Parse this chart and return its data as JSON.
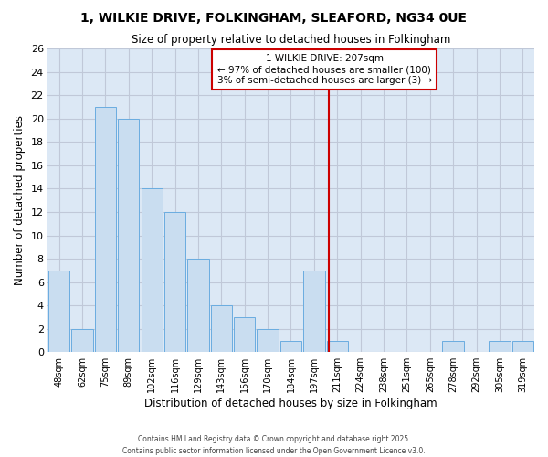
{
  "title": "1, WILKIE DRIVE, FOLKINGHAM, SLEAFORD, NG34 0UE",
  "subtitle": "Size of property relative to detached houses in Folkingham",
  "xlabel": "Distribution of detached houses by size in Folkingham",
  "ylabel": "Number of detached properties",
  "bar_labels": [
    "48sqm",
    "62sqm",
    "75sqm",
    "89sqm",
    "102sqm",
    "116sqm",
    "129sqm",
    "143sqm",
    "156sqm",
    "170sqm",
    "184sqm",
    "197sqm",
    "211sqm",
    "224sqm",
    "238sqm",
    "251sqm",
    "265sqm",
    "278sqm",
    "292sqm",
    "305sqm",
    "319sqm"
  ],
  "bar_values": [
    7,
    2,
    21,
    20,
    14,
    12,
    8,
    4,
    3,
    2,
    1,
    7,
    1,
    0,
    0,
    0,
    0,
    1,
    0,
    1,
    1
  ],
  "bar_color": "#c9ddf0",
  "bar_edge_color": "#6aace0",
  "grid_color": "#c0c8d8",
  "ylim": [
    0,
    26
  ],
  "yticks": [
    0,
    2,
    4,
    6,
    8,
    10,
    12,
    14,
    16,
    18,
    20,
    22,
    24,
    26
  ],
  "vline_x": 11.65,
  "vline_color": "#cc0000",
  "annotation_title": "1 WILKIE DRIVE: 207sqm",
  "annotation_line1": "← 97% of detached houses are smaller (100)",
  "annotation_line2": "3% of semi-detached houses are larger (3) →",
  "annotation_box_edge": "#cc0000",
  "footer1": "Contains HM Land Registry data © Crown copyright and database right 2025.",
  "footer2": "Contains public sector information licensed under the Open Government Licence v3.0.",
  "background_color": "#ffffff",
  "plot_bg_color": "#dce8f5"
}
